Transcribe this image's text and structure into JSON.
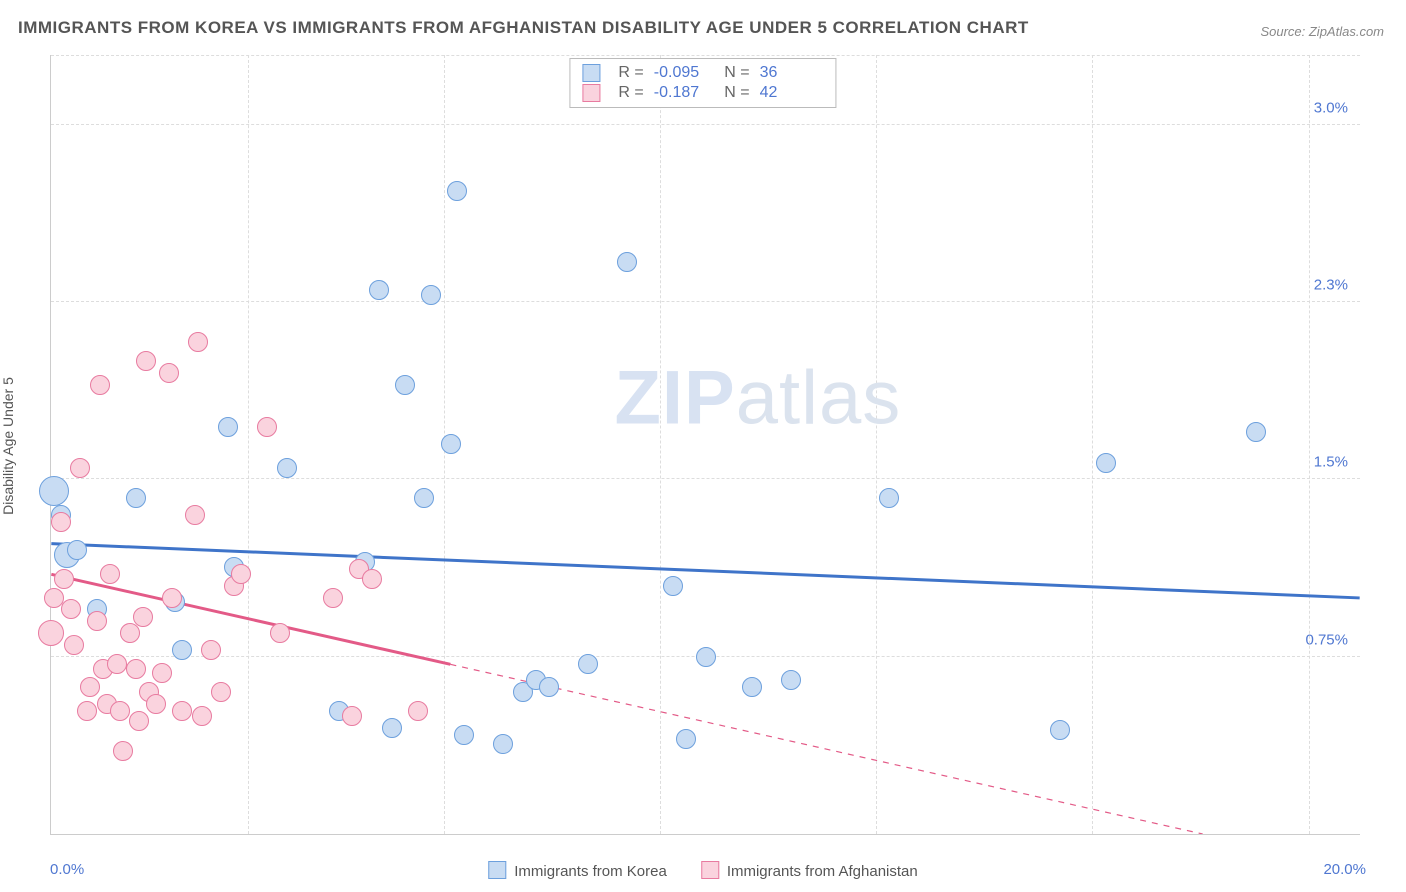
{
  "title": "IMMIGRANTS FROM KOREA VS IMMIGRANTS FROM AFGHANISTAN DISABILITY AGE UNDER 5 CORRELATION CHART",
  "source": "Source: ZipAtlas.com",
  "ylabel": "Disability Age Under 5",
  "watermark_a": "ZIP",
  "watermark_b": "atlas",
  "chart": {
    "type": "scatter",
    "background_color": "#ffffff",
    "grid_color": "#dddddd",
    "border_color": "#cccccc",
    "xlim": [
      0,
      20
    ],
    "ylim": [
      0,
      3.3
    ],
    "x_ticks_label_left": "0.0%",
    "x_ticks_label_right": "20.0%",
    "y_ticks": [
      {
        "v": 0.75,
        "label": "0.75%"
      },
      {
        "v": 1.5,
        "label": "1.5%"
      },
      {
        "v": 2.25,
        "label": "2.3%"
      },
      {
        "v": 3.0,
        "label": "3.0%"
      }
    ],
    "x_grid_at": [
      3.0,
      6.0,
      9.3,
      12.6,
      15.9,
      19.2
    ],
    "point_radius": 10,
    "point_border_width": 1.5,
    "series": [
      {
        "id": "korea",
        "name": "Immigrants from Korea",
        "fill": "#c8dcf3",
        "stroke": "#6da0dd",
        "line_color": "#3f74c9",
        "line_width": 3,
        "R": "-0.095",
        "N": "36",
        "trend": {
          "x1": 0,
          "y1": 1.23,
          "x2": 20,
          "y2": 1.0,
          "solid_until_x": 20
        },
        "points": [
          {
            "x": 0.05,
            "y": 1.45,
            "r": 15
          },
          {
            "x": 0.25,
            "y": 1.18,
            "r": 13
          },
          {
            "x": 0.4,
            "y": 1.2
          },
          {
            "x": 0.7,
            "y": 0.95
          },
          {
            "x": 1.3,
            "y": 1.42
          },
          {
            "x": 1.9,
            "y": 0.98
          },
          {
            "x": 2.0,
            "y": 0.78
          },
          {
            "x": 2.8,
            "y": 1.13
          },
          {
            "x": 2.7,
            "y": 1.72
          },
          {
            "x": 3.6,
            "y": 1.55
          },
          {
            "x": 4.4,
            "y": 0.52
          },
          {
            "x": 4.8,
            "y": 1.15
          },
          {
            "x": 5.0,
            "y": 2.3
          },
          {
            "x": 5.2,
            "y": 0.45
          },
          {
            "x": 5.4,
            "y": 1.9
          },
          {
            "x": 5.7,
            "y": 1.42
          },
          {
            "x": 5.8,
            "y": 2.28
          },
          {
            "x": 6.1,
            "y": 1.65
          },
          {
            "x": 6.2,
            "y": 2.72
          },
          {
            "x": 6.3,
            "y": 0.42
          },
          {
            "x": 6.9,
            "y": 0.38
          },
          {
            "x": 7.2,
            "y": 0.6
          },
          {
            "x": 7.4,
            "y": 0.65
          },
          {
            "x": 7.6,
            "y": 0.62
          },
          {
            "x": 8.2,
            "y": 0.72
          },
          {
            "x": 8.8,
            "y": 2.42
          },
          {
            "x": 9.5,
            "y": 1.05
          },
          {
            "x": 9.7,
            "y": 0.4
          },
          {
            "x": 10.7,
            "y": 0.62
          },
          {
            "x": 12.8,
            "y": 1.42
          },
          {
            "x": 15.4,
            "y": 0.44
          },
          {
            "x": 16.1,
            "y": 1.57
          },
          {
            "x": 18.4,
            "y": 1.7
          },
          {
            "x": 10.0,
            "y": 0.75
          },
          {
            "x": 0.15,
            "y": 1.35
          },
          {
            "x": 11.3,
            "y": 0.65
          }
        ]
      },
      {
        "id": "afghanistan",
        "name": "Immigrants from Afghanistan",
        "fill": "#fad3de",
        "stroke": "#e87ba0",
        "line_color": "#e35a87",
        "line_width": 3,
        "R": "-0.187",
        "N": "42",
        "trend": {
          "x1": 0,
          "y1": 1.1,
          "x2": 20,
          "y2": -0.15,
          "solid_until_x": 6.1
        },
        "points": [
          {
            "x": 0.0,
            "y": 0.85,
            "r": 13
          },
          {
            "x": 0.05,
            "y": 1.0
          },
          {
            "x": 0.15,
            "y": 1.32
          },
          {
            "x": 0.2,
            "y": 1.08
          },
          {
            "x": 0.3,
            "y": 0.95
          },
          {
            "x": 0.35,
            "y": 0.8
          },
          {
            "x": 0.45,
            "y": 1.55
          },
          {
            "x": 0.6,
            "y": 0.62
          },
          {
            "x": 0.7,
            "y": 0.9
          },
          {
            "x": 0.75,
            "y": 1.9
          },
          {
            "x": 0.8,
            "y": 0.7
          },
          {
            "x": 0.85,
            "y": 0.55
          },
          {
            "x": 0.9,
            "y": 1.1
          },
          {
            "x": 1.0,
            "y": 0.72
          },
          {
            "x": 1.05,
            "y": 0.52
          },
          {
            "x": 1.1,
            "y": 0.35
          },
          {
            "x": 1.2,
            "y": 0.85
          },
          {
            "x": 1.3,
            "y": 0.7
          },
          {
            "x": 1.35,
            "y": 0.48
          },
          {
            "x": 1.4,
            "y": 0.92
          },
          {
            "x": 1.45,
            "y": 2.0
          },
          {
            "x": 1.5,
            "y": 0.6
          },
          {
            "x": 1.6,
            "y": 0.55
          },
          {
            "x": 1.8,
            "y": 1.95
          },
          {
            "x": 1.85,
            "y": 1.0
          },
          {
            "x": 2.0,
            "y": 0.52
          },
          {
            "x": 2.2,
            "y": 1.35
          },
          {
            "x": 2.25,
            "y": 2.08
          },
          {
            "x": 2.3,
            "y": 0.5
          },
          {
            "x": 2.6,
            "y": 0.6
          },
          {
            "x": 2.8,
            "y": 1.05
          },
          {
            "x": 2.9,
            "y": 1.1
          },
          {
            "x": 3.3,
            "y": 1.72
          },
          {
            "x": 3.5,
            "y": 0.85
          },
          {
            "x": 4.3,
            "y": 1.0
          },
          {
            "x": 4.6,
            "y": 0.5
          },
          {
            "x": 4.7,
            "y": 1.12
          },
          {
            "x": 4.9,
            "y": 1.08
          },
          {
            "x": 5.6,
            "y": 0.52
          },
          {
            "x": 2.45,
            "y": 0.78
          },
          {
            "x": 0.55,
            "y": 0.52
          },
          {
            "x": 1.7,
            "y": 0.68
          }
        ]
      }
    ],
    "xlegend": [
      {
        "name": "Immigrants from Korea",
        "fill": "#c8dcf3",
        "stroke": "#6da0dd"
      },
      {
        "name": "Immigrants from Afghanistan",
        "fill": "#fad3de",
        "stroke": "#e87ba0"
      }
    ],
    "axis_label_color": "#4f77d1",
    "text_color": "#555555",
    "watermark_color": "#d8e2f2"
  }
}
